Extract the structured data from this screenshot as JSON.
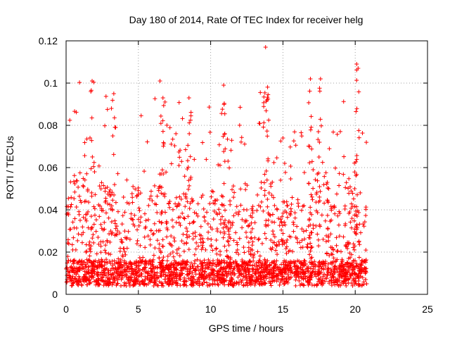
{
  "chart_data": {
    "type": "scatter",
    "title": "Day 180 of 2014, Rate Of TEC Index for receiver helg",
    "xlabel": "GPS time / hours",
    "ylabel": "ROTI / TECUs",
    "xlim": [
      0,
      25
    ],
    "ylim": [
      0,
      0.12
    ],
    "xticks": [
      0,
      5,
      10,
      15,
      20,
      25
    ],
    "yticks": [
      0,
      0.02,
      0.04,
      0.06,
      0.08,
      0.1,
      0.12
    ],
    "xtick_labels": [
      "0",
      "5",
      "10",
      "15",
      "20",
      "25"
    ],
    "ytick_labels": [
      "0",
      "0.02",
      "0.04",
      "0.06",
      "0.08",
      "0.1",
      "0.12"
    ],
    "grid": true,
    "marker": "plus",
    "color": "#ff0000",
    "data_x_range": [
      0,
      20.8
    ],
    "peaks": [
      {
        "x": 1.8,
        "y": 0.101
      },
      {
        "x": 3.3,
        "y": 0.095
      },
      {
        "x": 6.7,
        "y": 0.093
      },
      {
        "x": 8.5,
        "y": 0.093
      },
      {
        "x": 10.9,
        "y": 0.099
      },
      {
        "x": 13.8,
        "y": 0.117
      },
      {
        "x": 13.9,
        "y": 0.092
      },
      {
        "x": 15.0,
        "y": 0.074
      },
      {
        "x": 16.9,
        "y": 0.102
      },
      {
        "x": 17.6,
        "y": 0.102
      },
      {
        "x": 20.1,
        "y": 0.109
      },
      {
        "x": 20.2,
        "y": 0.107
      }
    ]
  }
}
